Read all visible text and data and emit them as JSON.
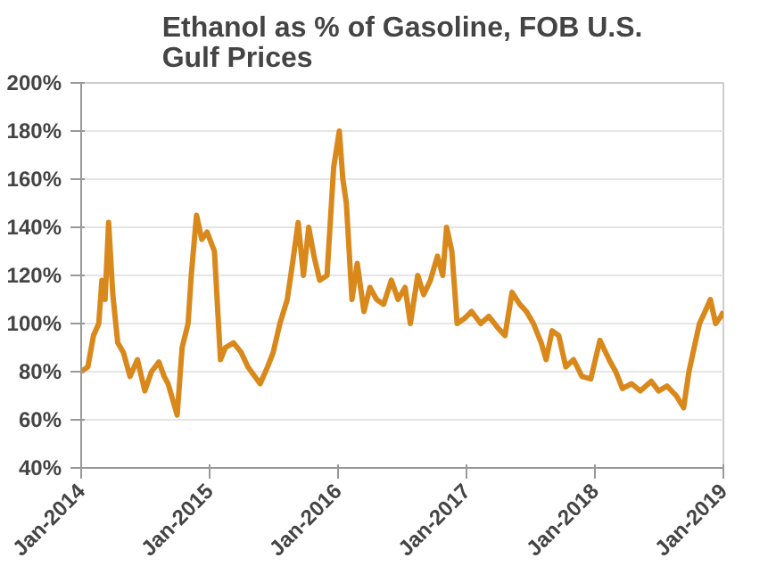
{
  "chart_data": {
    "type": "line",
    "title": "Ethanol as %  of Gasoline, FOB U.S. Gulf Prices",
    "x": [
      "2014-01-01",
      "2014-01-20",
      "2014-02-05",
      "2014-02-20",
      "2014-03-01",
      "2014-03-10",
      "2014-03-20",
      "2014-04-01",
      "2014-04-15",
      "2014-05-01",
      "2014-05-20",
      "2014-06-10",
      "2014-07-01",
      "2014-07-20",
      "2014-08-10",
      "2014-08-25",
      "2014-09-05",
      "2014-09-15",
      "2014-10-01",
      "2014-10-15",
      "2014-11-01",
      "2014-11-10",
      "2014-11-25",
      "2014-12-10",
      "2014-12-25",
      "2015-01-15",
      "2015-02-01",
      "2015-02-15",
      "2015-03-10",
      "2015-04-01",
      "2015-04-20",
      "2015-05-10",
      "2015-05-25",
      "2015-06-15",
      "2015-07-01",
      "2015-07-20",
      "2015-08-10",
      "2015-08-25",
      "2015-09-10",
      "2015-09-25",
      "2015-10-10",
      "2015-10-25",
      "2015-11-10",
      "2015-12-01",
      "2015-12-20",
      "2016-01-05",
      "2016-01-15",
      "2016-01-25",
      "2016-02-10",
      "2016-02-25",
      "2016-03-15",
      "2016-04-01",
      "2016-04-20",
      "2016-05-10",
      "2016-06-01",
      "2016-06-20",
      "2016-07-10",
      "2016-07-25",
      "2016-08-15",
      "2016-09-01",
      "2016-09-20",
      "2016-10-10",
      "2016-10-25",
      "2016-11-05",
      "2016-11-20",
      "2016-12-05",
      "2016-12-25",
      "2017-01-15",
      "2017-02-10",
      "2017-03-05",
      "2017-04-01",
      "2017-04-20",
      "2017-05-10",
      "2017-06-01",
      "2017-06-20",
      "2017-07-10",
      "2017-08-01",
      "2017-08-15",
      "2017-09-01",
      "2017-09-20",
      "2017-10-10",
      "2017-11-01",
      "2017-11-25",
      "2017-12-20",
      "2018-01-15",
      "2018-02-10",
      "2018-03-01",
      "2018-03-20",
      "2018-04-15",
      "2018-05-10",
      "2018-06-10",
      "2018-07-01",
      "2018-07-25",
      "2018-08-20",
      "2018-09-10",
      "2018-09-25",
      "2018-10-10",
      "2018-10-25",
      "2018-11-10",
      "2018-11-25",
      "2018-12-10",
      "2018-12-25",
      "2019-01-01"
    ],
    "series": [
      {
        "color": "#d9891c",
        "values": [
          80,
          82,
          95,
          100,
          118,
          110,
          142,
          112,
          92,
          88,
          78,
          85,
          72,
          80,
          84,
          78,
          75,
          70,
          62,
          90,
          100,
          120,
          145,
          135,
          138,
          130,
          85,
          90,
          92,
          88,
          82,
          78,
          75,
          82,
          88,
          100,
          110,
          125,
          142,
          120,
          140,
          128,
          118,
          120,
          165,
          180,
          160,
          150,
          110,
          125,
          105,
          115,
          110,
          108,
          118,
          110,
          115,
          100,
          120,
          112,
          118,
          128,
          120,
          140,
          130,
          100,
          102,
          105,
          100,
          103,
          98,
          95,
          113,
          108,
          105,
          100,
          92,
          85,
          97,
          95,
          82,
          85,
          78,
          77,
          93,
          85,
          80,
          73,
          75,
          72,
          76,
          72,
          74,
          70,
          65,
          80,
          90,
          100,
          105,
          110,
          100,
          103,
          105
        ]
      }
    ],
    "xticks": [
      {
        "value": "2014-01-01",
        "label": "Jan-2014"
      },
      {
        "value": "2015-01-01",
        "label": "Jan-2015"
      },
      {
        "value": "2016-01-01",
        "label": "Jan-2016"
      },
      {
        "value": "2017-01-01",
        "label": "Jan-2017"
      },
      {
        "value": "2018-01-01",
        "label": "Jan-2018"
      },
      {
        "value": "2019-01-01",
        "label": "Jan-2019"
      }
    ],
    "xlim": [
      "2014-01-01",
      "2019-01-01"
    ],
    "ylim": [
      40,
      200
    ],
    "yticks": [
      {
        "value": 40,
        "label": "40%"
      },
      {
        "value": 60,
        "label": "60%"
      },
      {
        "value": 80,
        "label": "80%"
      },
      {
        "value": 100,
        "label": "100%"
      },
      {
        "value": 120,
        "label": "120%"
      },
      {
        "value": 140,
        "label": "140%"
      },
      {
        "value": 160,
        "label": "160%"
      },
      {
        "value": 180,
        "label": "180%"
      },
      {
        "value": 200,
        "label": "200%"
      }
    ],
    "grid": "y"
  }
}
